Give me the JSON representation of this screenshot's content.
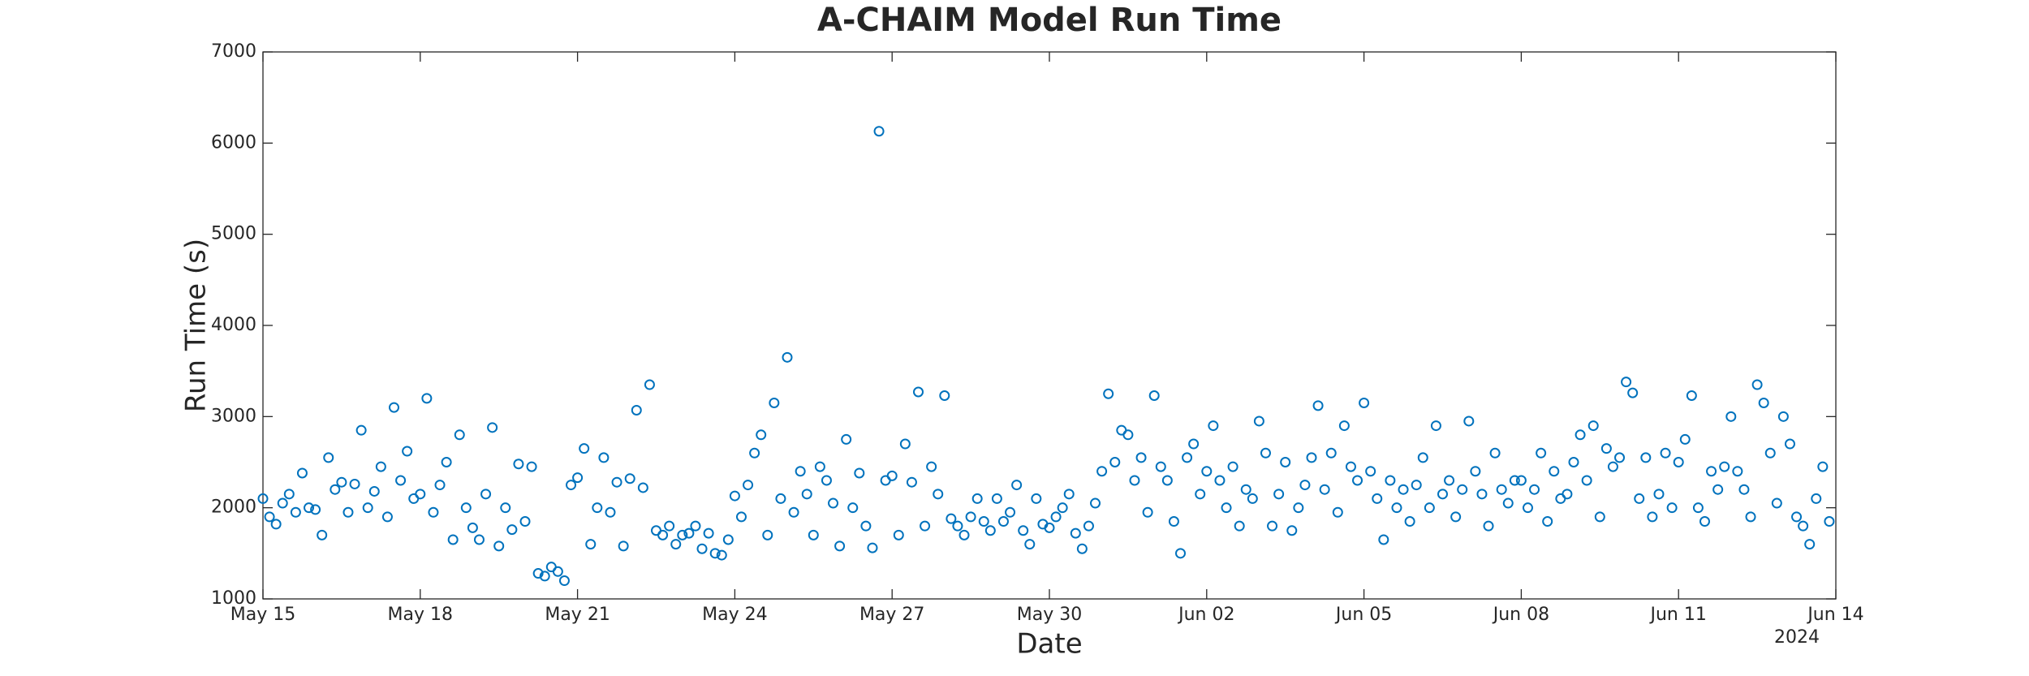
{
  "chart_data": {
    "type": "scatter",
    "title": "A-CHAIM Model Run Time",
    "x_label": "Date",
    "y_label": "Run Time (s)",
    "x_axis_year": "2024",
    "color": "#0072bd",
    "xlim": [
      0,
      30
    ],
    "xticks": [
      {
        "value": 0,
        "label": "May 15"
      },
      {
        "value": 3,
        "label": "May 18"
      },
      {
        "value": 6,
        "label": "May 21"
      },
      {
        "value": 9,
        "label": "May 24"
      },
      {
        "value": 12,
        "label": "May 27"
      },
      {
        "value": 15,
        "label": "May 30"
      },
      {
        "value": 18,
        "label": "Jun 02"
      },
      {
        "value": 21,
        "label": "Jun 05"
      },
      {
        "value": 24,
        "label": "Jun 08"
      },
      {
        "value": 27,
        "label": "Jun 11"
      },
      {
        "value": 30,
        "label": "Jun 14"
      }
    ],
    "ylim": [
      1000,
      7000
    ],
    "yticks": [
      1000,
      2000,
      3000,
      4000,
      5000,
      6000,
      7000
    ],
    "x": [
      0,
      0.125,
      0.25,
      0.375,
      0.5,
      0.625,
      0.75,
      0.875,
      1,
      1.125,
      1.25,
      1.375,
      1.5,
      1.625,
      1.75,
      1.875,
      2,
      2.125,
      2.25,
      2.375,
      2.5,
      2.625,
      2.75,
      2.875,
      3,
      3.125,
      3.25,
      3.375,
      3.5,
      3.625,
      3.75,
      3.875,
      4,
      4.125,
      4.25,
      4.375,
      4.5,
      4.625,
      4.75,
      4.875,
      5,
      5.125,
      5.25,
      5.375,
      5.5,
      5.625,
      5.75,
      5.875,
      6,
      6.125,
      6.25,
      6.375,
      6.5,
      6.625,
      6.75,
      6.875,
      7,
      7.125,
      7.25,
      7.375,
      7.5,
      7.625,
      7.75,
      7.875,
      8,
      8.125,
      8.25,
      8.375,
      8.5,
      8.625,
      8.75,
      8.875,
      9,
      9.125,
      9.25,
      9.375,
      9.5,
      9.625,
      9.75,
      9.875,
      10,
      10.125,
      10.25,
      10.375,
      10.5,
      10.625,
      10.75,
      10.875,
      11,
      11.125,
      11.25,
      11.375,
      11.5,
      11.625,
      11.75,
      11.875,
      12,
      12.125,
      12.25,
      12.375,
      12.5,
      12.625,
      12.75,
      12.875,
      13,
      13.125,
      13.25,
      13.375,
      13.5,
      13.625,
      13.75,
      13.875,
      14,
      14.125,
      14.25,
      14.375,
      14.5,
      14.625,
      14.75,
      14.875,
      15,
      15.125,
      15.25,
      15.375,
      15.5,
      15.625,
      15.75,
      15.875,
      16,
      16.125,
      16.25,
      16.375,
      16.5,
      16.625,
      16.75,
      16.875,
      17,
      17.125,
      17.25,
      17.375,
      17.5,
      17.625,
      17.75,
      17.875,
      18,
      18.125,
      18.25,
      18.375,
      18.5,
      18.625,
      18.75,
      18.875,
      19,
      19.125,
      19.25,
      19.375,
      19.5,
      19.625,
      19.75,
      19.875,
      20,
      20.125,
      20.25,
      20.375,
      20.5,
      20.625,
      20.75,
      20.875,
      21,
      21.125,
      21.25,
      21.375,
      21.5,
      21.625,
      21.75,
      21.875,
      22,
      22.125,
      22.25,
      22.375,
      22.5,
      22.625,
      22.75,
      22.875,
      23,
      23.125,
      23.25,
      23.375,
      23.5,
      23.625,
      23.75,
      23.875,
      24,
      24.125,
      24.25,
      24.375,
      24.5,
      24.625,
      24.75,
      24.875,
      25,
      25.125,
      25.25,
      25.375,
      25.5,
      25.625,
      25.75,
      25.875,
      26,
      26.125,
      26.25,
      26.375,
      26.5,
      26.625,
      26.75,
      26.875,
      27,
      27.125,
      27.25,
      27.375,
      27.5,
      27.625,
      27.75,
      27.875,
      28,
      28.125,
      28.25,
      28.375,
      28.5,
      28.625,
      28.75,
      28.875,
      29,
      29.125,
      29.25,
      29.375,
      29.5,
      29.625,
      29.75,
      29.875
    ],
    "values": [
      2100,
      1900,
      1820,
      2050,
      2150,
      1950,
      2380,
      2000,
      1980,
      1700,
      2550,
      2200,
      2280,
      1950,
      2260,
      2850,
      2000,
      2180,
      2450,
      1900,
      3100,
      2300,
      2620,
      2100,
      2150,
      3200,
      1950,
      2250,
      2500,
      1650,
      2800,
      2000,
      1780,
      1650,
      2150,
      2880,
      1580,
      2000,
      1760,
      2480,
      1850,
      2450,
      1280,
      1250,
      1350,
      1300,
      1200,
      2250,
      2330,
      2650,
      1600,
      2000,
      2550,
      1950,
      2280,
      1580,
      2320,
      3070,
      2220,
      3350,
      1750,
      1700,
      1800,
      1600,
      1700,
      1720,
      1800,
      1550,
      1720,
      1500,
      1480,
      1650,
      2130,
      1900,
      2250,
      2600,
      2800,
      1700,
      3150,
      2100,
      3650,
      1950,
      2400,
      2150,
      1700,
      2450,
      2300,
      2050,
      1580,
      2750,
      2000,
      2380,
      1800,
      1560,
      6130,
      2300,
      2350,
      1700,
      2700,
      2280,
      3270,
      1800,
      2450,
      2150,
      3230,
      1880,
      1800,
      1700,
      1900,
      2100,
      1850,
      1750,
      2100,
      1850,
      1950,
      2250,
      1750,
      1600,
      2100,
      1820,
      1780,
      1900,
      2000,
      2150,
      1720,
      1550,
      1800,
      2050,
      2400,
      3250,
      2500,
      2850,
      2800,
      2300,
      2550,
      1950,
      3230,
      2450,
      2300,
      1850,
      1500,
      2550,
      2700,
      2150,
      2400,
      2900,
      2300,
      2000,
      2450,
      1800,
      2200,
      2100,
      2950,
      2600,
      1800,
      2150,
      2500,
      1750,
      2000,
      2250,
      2550,
      3120,
      2200,
      2600,
      1950,
      2900,
      2450,
      2300,
      3150,
      2400,
      2100,
      1650,
      2300,
      2000,
      2200,
      1850,
      2250,
      2550,
      2000,
      2900,
      2150,
      2300,
      1900,
      2200,
      2950,
      2400,
      2150,
      1800,
      2600,
      2200,
      2050,
      2300,
      2300,
      2000,
      2200,
      2600,
      1850,
      2400,
      2100,
      2150,
      2500,
      2800,
      2300,
      2900,
      1900,
      2650,
      2450,
      2550,
      3380,
      3260,
      2100,
      2550,
      1900,
      2150,
      2600,
      2000,
      2500,
      2750,
      3230,
      2000,
      1850,
      2400,
      2200,
      2450,
      3000,
      2400,
      2200,
      1900,
      3350,
      3150,
      2600,
      2050,
      3000,
      2700,
      1900,
      1800,
      1600,
      2100,
      2450,
      1850
    ]
  }
}
